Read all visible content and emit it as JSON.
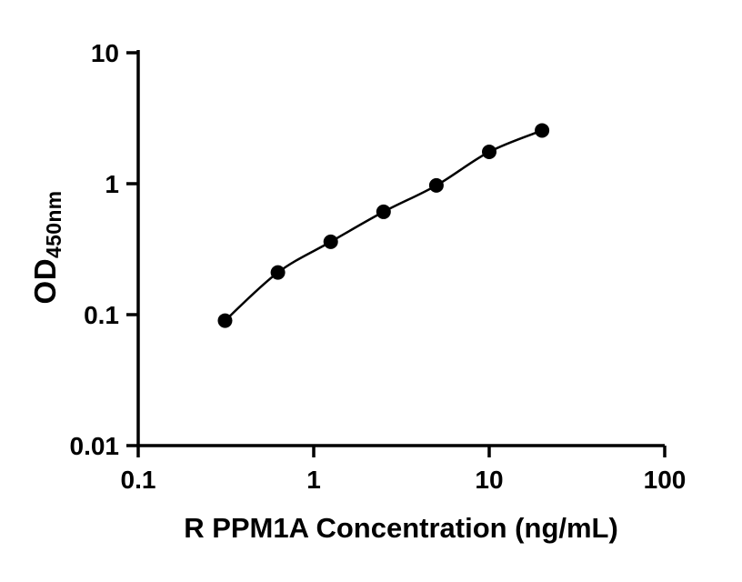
{
  "chart_data": {
    "type": "scatter",
    "title": "",
    "xlabel": "R PPM1A Concentration (ng/mL)",
    "ylabel_main": "OD",
    "ylabel_sub": "450nm",
    "x_scale": "log",
    "y_scale": "log",
    "xlim": [
      0.1,
      100
    ],
    "ylim": [
      0.01,
      10
    ],
    "x_ticks": [
      0.1,
      1,
      10,
      100
    ],
    "x_tick_labels": [
      "0.1",
      "1",
      "10",
      "100"
    ],
    "y_ticks": [
      0.01,
      0.1,
      1,
      10
    ],
    "y_tick_labels": [
      "0.01",
      "0.1",
      "1",
      "10"
    ],
    "x": [
      0.3125,
      0.625,
      1.25,
      2.5,
      5,
      10,
      20
    ],
    "y": [
      0.09,
      0.21,
      0.36,
      0.61,
      0.97,
      1.75,
      2.55
    ],
    "grid": false,
    "legend": null,
    "curve": "smooth-fit-through-points",
    "marker": "filled-circle",
    "marker_radius": 8,
    "color": "#000000",
    "background_color": "#ffffff"
  }
}
